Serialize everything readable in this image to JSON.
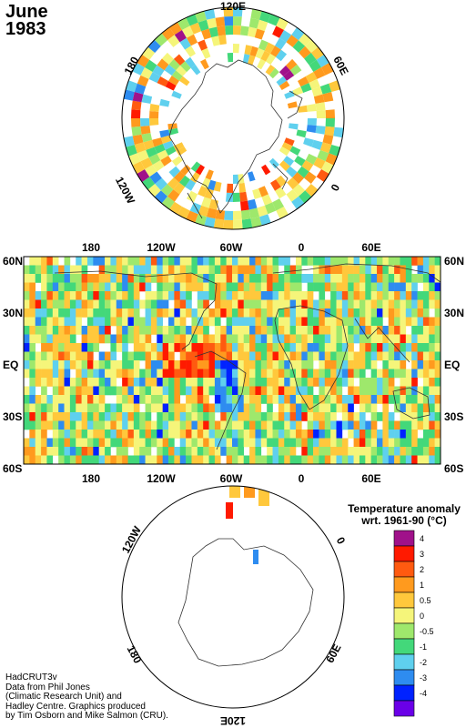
{
  "title": {
    "month": "June",
    "year": "1983"
  },
  "legend": {
    "title_line1": "Temperature anomaly",
    "title_line2": "wrt. 1961-90  (°C)",
    "bins": [
      {
        "label": "4",
        "color": "#a0118a"
      },
      {
        "label": "3",
        "color": "#ff1a00"
      },
      {
        "label": "2",
        "color": "#ff5a10"
      },
      {
        "label": "1",
        "color": "#ff9a1e"
      },
      {
        "label": "0.5",
        "color": "#ffc83c"
      },
      {
        "label": "0",
        "color": "#f5f57a"
      },
      {
        "label": "-0.5",
        "color": "#9ee86c"
      },
      {
        "label": "-1",
        "color": "#43d87a"
      },
      {
        "label": "-2",
        "color": "#5fd0ee"
      },
      {
        "label": "-3",
        "color": "#2e8cf0"
      },
      {
        "label": "-4",
        "color": "#0022ff"
      },
      {
        "label": "",
        "color": "#6a00e8"
      }
    ]
  },
  "map_main": {
    "top_lon_labels": [
      "180",
      "120W",
      "60W",
      "0",
      "60E"
    ],
    "bottom_lon_labels": [
      "180",
      "120W",
      "60W",
      "0",
      "60E"
    ],
    "lat_labels": [
      "60N",
      "30N",
      "EQ",
      "30S",
      "60S"
    ]
  },
  "north_polar": {
    "labels": [
      "120E",
      "60E",
      "0",
      "120W",
      "180"
    ]
  },
  "south_polar": {
    "labels": [
      "120W",
      "0",
      "180",
      "60E",
      "120E"
    ]
  },
  "credits": [
    "HadCRUT3v",
    "Data from Phil Jones",
    "(Climatic Research Unit) and",
    "Hadley Centre.  Graphics produced",
    "by Tim Osborn and Mike Salmon (CRU)."
  ]
}
